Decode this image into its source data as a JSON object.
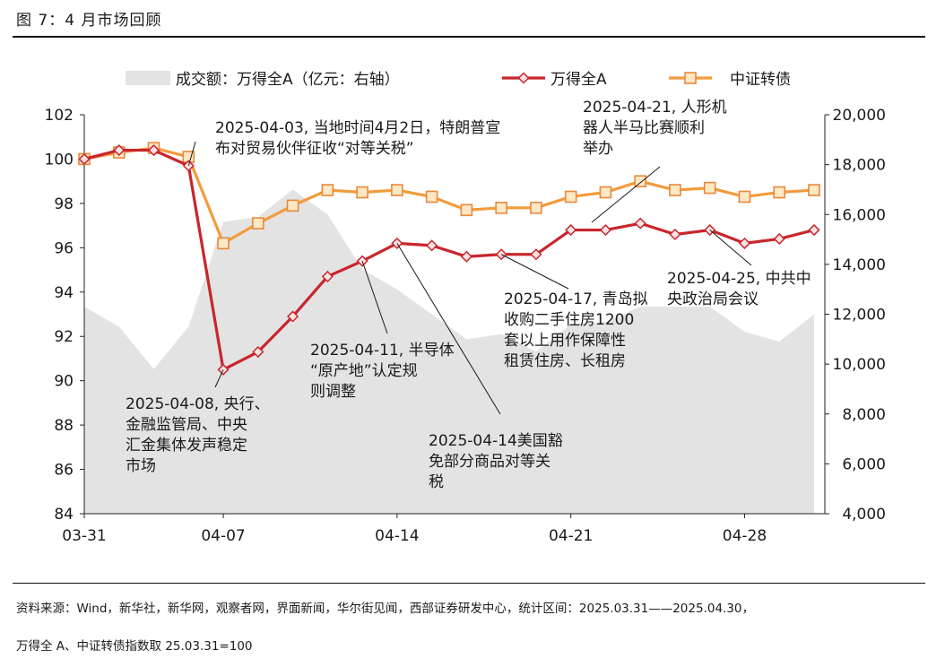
{
  "figure": {
    "title": "图 7：4 月市场回顾",
    "source_line1": "资料来源：Wind，新华社，新华网，观察者网，界面新闻，华尔街见闻，西部证券研发中心，统计区间：2025.03.31——2025.04.30，",
    "source_line2": "万得全 A、中证转债指数取 25.03.31=100"
  },
  "chart_data": {
    "type": "line",
    "title": "",
    "x": [
      "03-31",
      "04-01",
      "04-02",
      "04-03",
      "04-07",
      "04-08",
      "04-09",
      "04-10",
      "04-11",
      "04-14",
      "04-15",
      "04-16",
      "04-17",
      "04-18",
      "04-21",
      "04-22",
      "04-23",
      "04-24",
      "04-25",
      "04-28",
      "04-29",
      "04-30"
    ],
    "xticks": [
      "03-31",
      "04-07",
      "04-14",
      "04-21",
      "04-28"
    ],
    "y_left": {
      "ylim": [
        84,
        102
      ],
      "ticks": [
        "84",
        "86",
        "88",
        "90",
        "92",
        "94",
        "96",
        "98",
        "100",
        "102"
      ]
    },
    "y_right": {
      "ylim": [
        4000,
        20000
      ],
      "ticks": [
        "4,000",
        "6,000",
        "8,000",
        "10,000",
        "12,000",
        "14,000",
        "16,000",
        "18,000",
        "20,000"
      ]
    },
    "legend": {
      "placement": "top",
      "labels": [
        "成交额：万得全A（亿元：右轴）",
        "万得全A",
        "中证转债"
      ]
    },
    "series": [
      {
        "name": "成交额：万得全A（亿元：右轴）",
        "type": "area",
        "axis": "right",
        "color": "#e3e3e3",
        "values": [
          12300,
          11500,
          9800,
          11500,
          15700,
          15900,
          17000,
          16000,
          13800,
          13000,
          12000,
          11000,
          11200,
          10500,
          11600,
          11700,
          12300,
          12300,
          12300,
          11300,
          10900,
          12000
        ]
      },
      {
        "name": "万得全A",
        "type": "line",
        "axis": "left",
        "color": "#c9252c",
        "values": [
          100.0,
          100.4,
          100.4,
          99.7,
          90.5,
          91.3,
          92.9,
          94.7,
          95.4,
          96.2,
          96.1,
          95.6,
          95.7,
          95.7,
          96.8,
          96.8,
          97.1,
          96.6,
          96.8,
          96.2,
          96.4,
          96.8
        ]
      },
      {
        "name": "中证转债",
        "type": "line",
        "axis": "left",
        "color": "#f29b3c",
        "values": [
          100.0,
          100.3,
          100.5,
          100.1,
          96.2,
          97.1,
          97.9,
          98.6,
          98.5,
          98.6,
          98.3,
          97.7,
          97.8,
          97.8,
          98.3,
          98.5,
          99.0,
          98.6,
          98.7,
          98.3,
          98.5,
          98.6
        ]
      }
    ],
    "annotations": [
      {
        "text": [
          "2025-04-03, 当地时间4月2日，特朗普宣",
          "布对贸易伙伴征收“对等关税”"
        ],
        "target_index": 3
      },
      {
        "text": [
          "2025-04-21, 人形机",
          "器人半马比赛顺利",
          "举办"
        ],
        "target_index": 14
      },
      {
        "text": [
          "2025-04-08, 央行、",
          "金融监管局、中央",
          "汇金集体发声稳定",
          "市场"
        ],
        "target_index": 4
      },
      {
        "text": [
          "2025-04-11, 半导体",
          "“原产地”认定规",
          "则调整"
        ],
        "target_index": 8
      },
      {
        "text": [
          "2025-04-14美国豁",
          "免部分商品对等关",
          "税"
        ],
        "target_index": 9
      },
      {
        "text": [
          "2025-04-17, 青岛拟",
          "收购二手住房1200",
          "套以上用作保障性",
          "租赁住房、长租房"
        ],
        "target_index": 12
      },
      {
        "text": [
          "2025-04-25, 中共中",
          "央政治局会议"
        ],
        "target_index": 18
      }
    ]
  }
}
